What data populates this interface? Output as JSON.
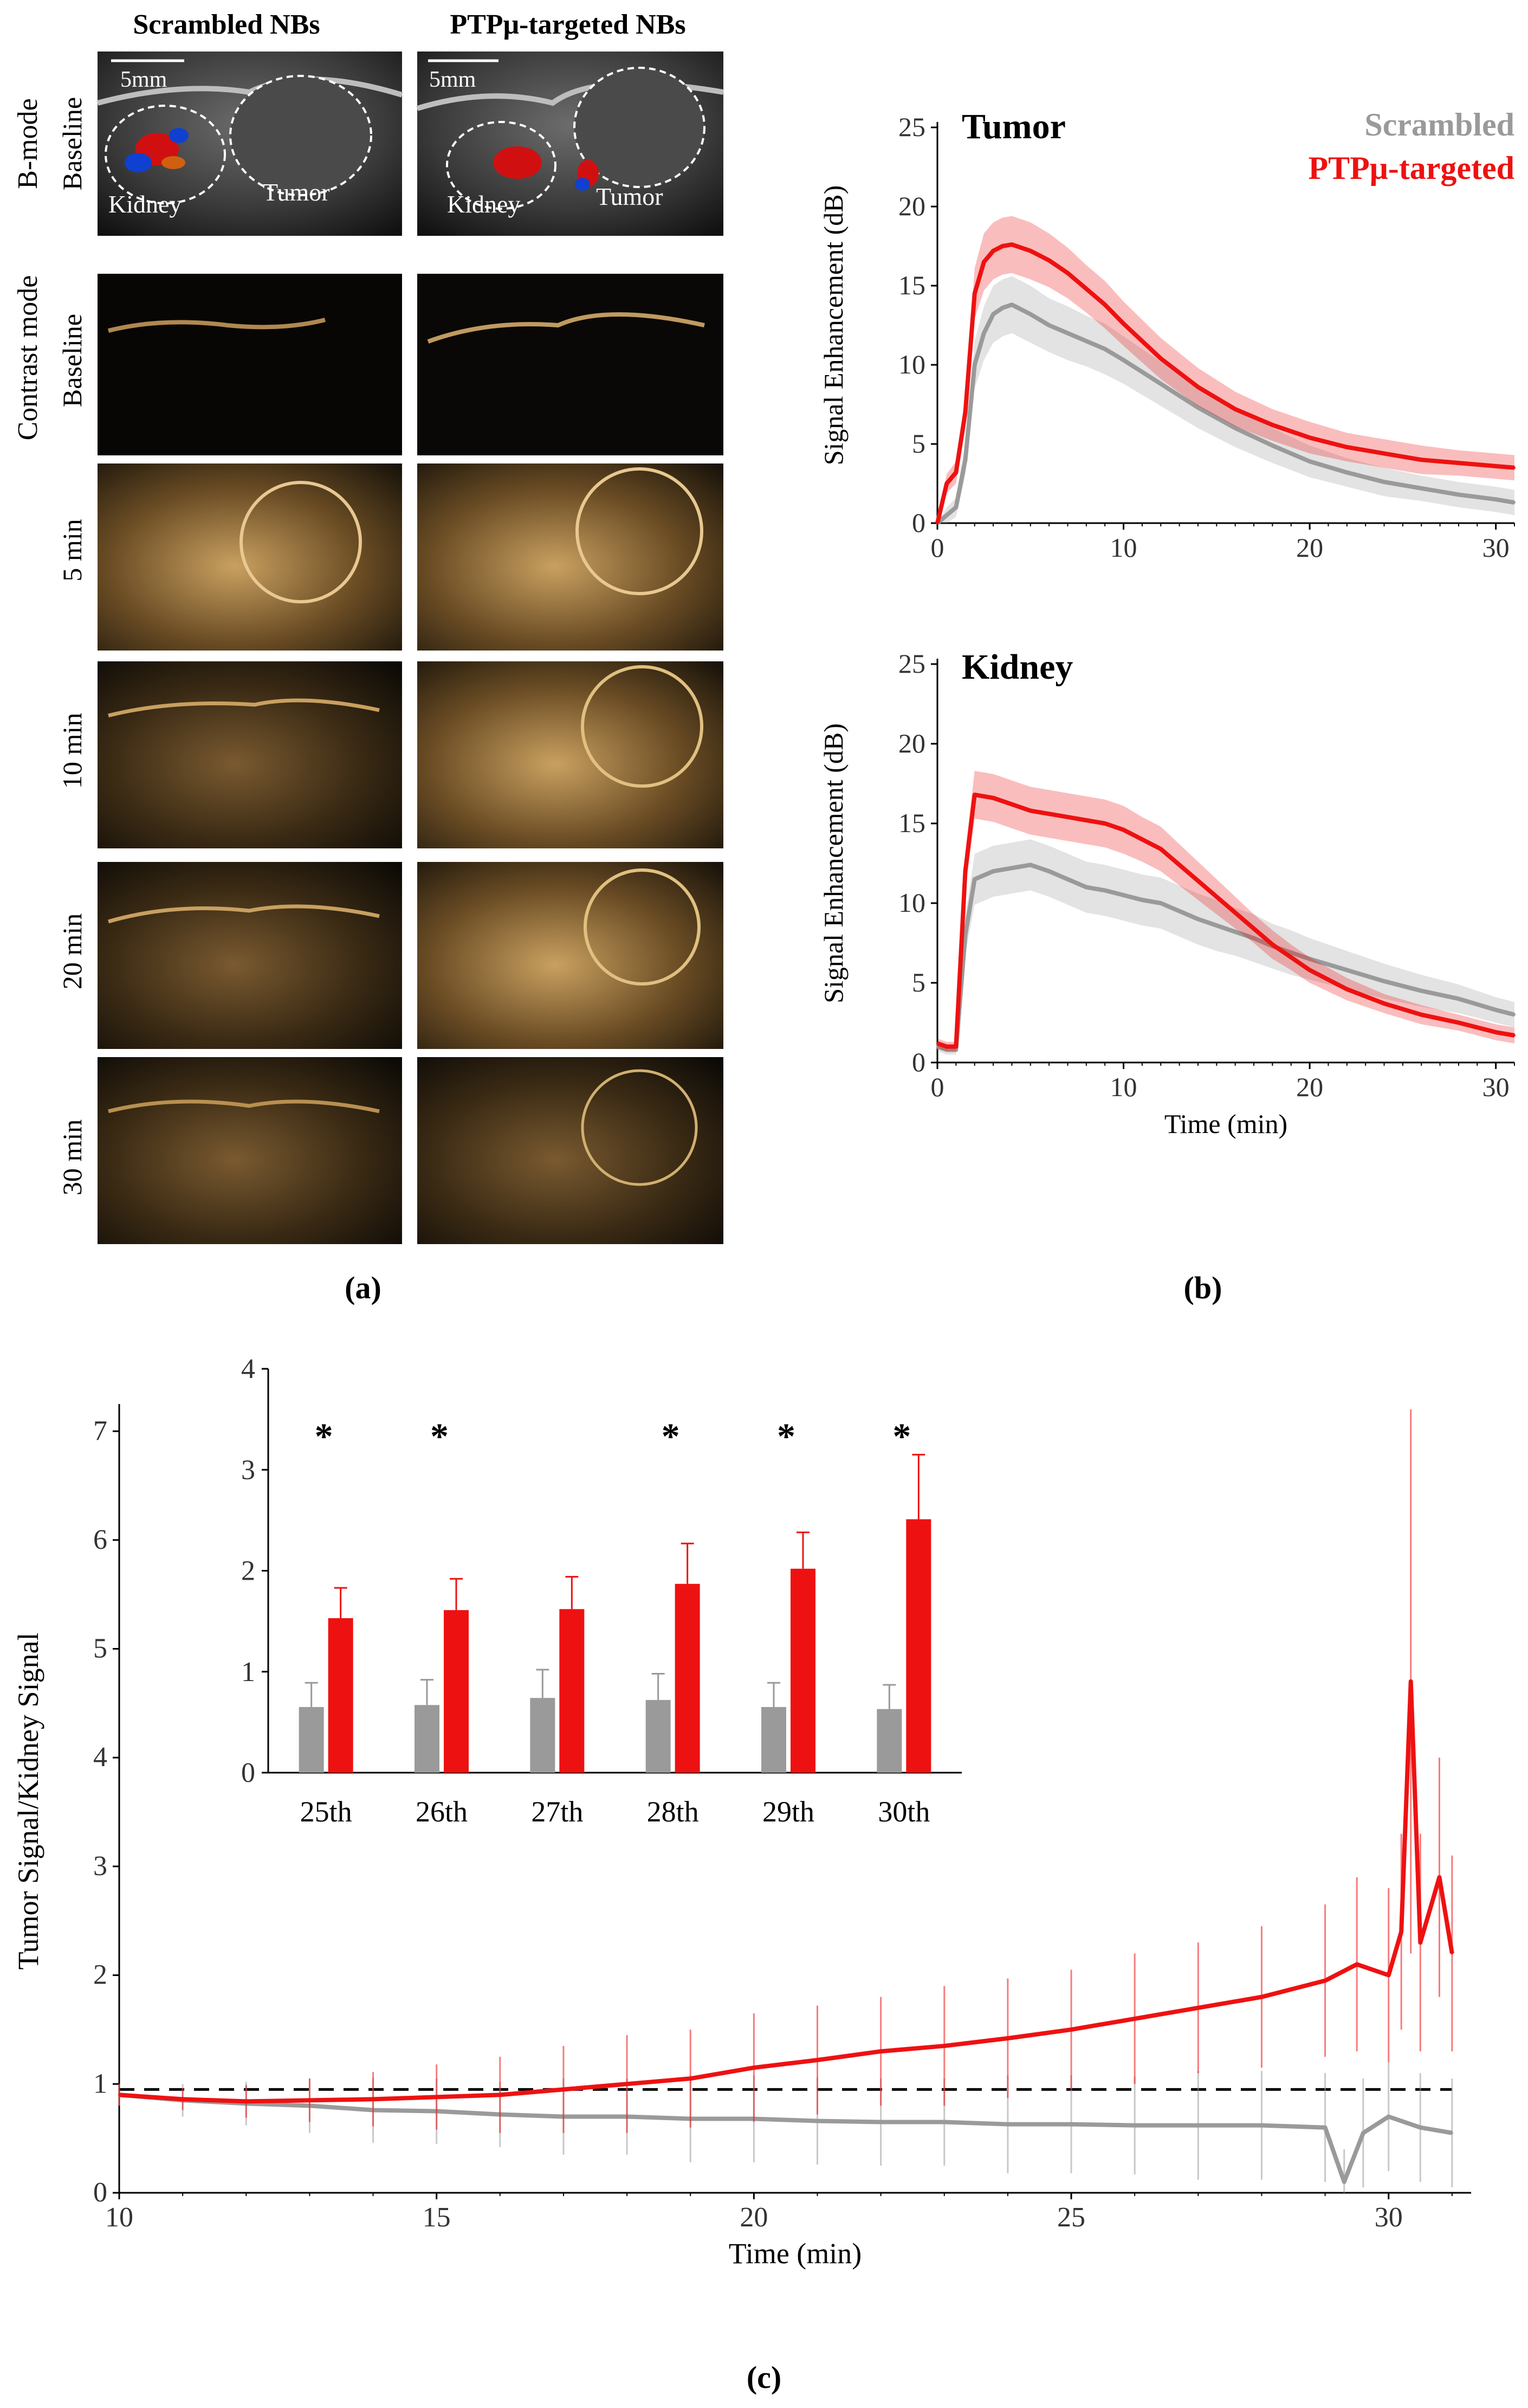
{
  "panel_a": {
    "column_headers": [
      "Scrambled NBs",
      "PTPμ-targeted NBs"
    ],
    "group_labels": [
      "B-mode",
      "Contrast mode"
    ],
    "row_labels": [
      "Baseline",
      "Baseline",
      "5 min",
      "10 min",
      "20 min",
      "30 min"
    ],
    "scale_bar": "5mm",
    "organ_labels": {
      "kidney": "Kidney",
      "tumor": "Tumor"
    },
    "caption": "(a)"
  },
  "panel_b": {
    "caption": "(b)"
  },
  "panel_c": {
    "caption": "(c)"
  },
  "colors": {
    "scrambled": "#9a9a9a",
    "targeted": "#ee1111",
    "ultrasound_tint": "#e0b878"
  },
  "chart_data": [
    {
      "id": "tumor",
      "type": "line",
      "title": "Tumor",
      "xlabel": "",
      "ylabel": "Signal Enhancement (dB)",
      "xlim": [
        0,
        31
      ],
      "ylim": [
        0,
        25
      ],
      "xticks": [
        0,
        10,
        20,
        30
      ],
      "yticks": [
        0,
        5,
        10,
        15,
        20,
        25
      ],
      "legend": {
        "placement": "top-right",
        "entries": [
          "Scrambled",
          "PTPμ-targeted"
        ]
      },
      "series": [
        {
          "name": "Scrambled",
          "color": "#9a9a9a",
          "x": [
            0,
            0.5,
            1,
            1.5,
            2,
            2.5,
            3,
            3.5,
            4,
            5,
            6,
            7,
            8,
            9,
            10,
            12,
            14,
            16,
            18,
            20,
            22,
            24,
            26,
            28,
            30,
            31
          ],
          "y": [
            0,
            0.5,
            1,
            4,
            10,
            12,
            13.2,
            13.6,
            13.8,
            13.2,
            12.5,
            12,
            11.5,
            11,
            10.3,
            8.8,
            7.3,
            6,
            4.9,
            3.9,
            3.2,
            2.6,
            2.2,
            1.8,
            1.5,
            1.3
          ],
          "err": [
            0,
            0.5,
            0.6,
            1,
            1.5,
            1.7,
            1.8,
            1.8,
            1.8,
            1.8,
            1.7,
            1.7,
            1.6,
            1.6,
            1.5,
            1.4,
            1.3,
            1.2,
            1.1,
            1,
            0.9,
            0.9,
            0.8,
            0.8,
            0.8,
            0.8
          ]
        },
        {
          "name": "PTPμ-targeted",
          "color": "#ee1111",
          "x": [
            0,
            0.5,
            1,
            1.5,
            2,
            2.5,
            3,
            3.5,
            4,
            5,
            6,
            7,
            8,
            9,
            10,
            12,
            14,
            16,
            18,
            20,
            22,
            24,
            26,
            28,
            30,
            31
          ],
          "y": [
            0,
            2.5,
            3.2,
            7,
            14.5,
            16.5,
            17.2,
            17.5,
            17.6,
            17.2,
            16.6,
            15.8,
            14.8,
            13.8,
            12.6,
            10.4,
            8.6,
            7.2,
            6.2,
            5.4,
            4.8,
            4.4,
            4,
            3.8,
            3.6,
            3.5
          ],
          "err": [
            0,
            0.6,
            0.7,
            1,
            1.6,
            1.8,
            1.8,
            1.8,
            1.8,
            1.8,
            1.7,
            1.6,
            1.5,
            1.5,
            1.4,
            1.3,
            1.2,
            1.1,
            1,
            1,
            0.9,
            0.9,
            0.9,
            0.8,
            0.8,
            0.8
          ]
        }
      ]
    },
    {
      "id": "kidney",
      "type": "line",
      "title": "Kidney",
      "xlabel": "Time (min)",
      "ylabel": "Signal Enhancement (dB)",
      "xlim": [
        0,
        31
      ],
      "ylim": [
        0,
        25
      ],
      "xticks": [
        0,
        10,
        20,
        30
      ],
      "yticks": [
        0,
        5,
        10,
        15,
        20,
        25
      ],
      "series": [
        {
          "name": "Scrambled",
          "color": "#9a9a9a",
          "x": [
            0,
            0.5,
            1,
            1.5,
            2,
            3,
            4,
            5,
            6,
            7,
            8,
            9,
            10,
            11,
            12,
            13,
            14,
            15,
            16,
            17,
            18,
            19,
            20,
            22,
            24,
            26,
            28,
            30,
            31
          ],
          "y": [
            1,
            0.8,
            0.8,
            8,
            11.5,
            12,
            12.2,
            12.4,
            12,
            11.5,
            11,
            10.8,
            10.5,
            10.2,
            10,
            9.5,
            9,
            8.6,
            8.2,
            7.8,
            7.3,
            6.9,
            6.5,
            5.8,
            5.1,
            4.5,
            4,
            3.3,
            3
          ],
          "err": [
            0.3,
            0.3,
            0.3,
            1.2,
            1.6,
            1.6,
            1.6,
            1.6,
            1.6,
            1.6,
            1.6,
            1.6,
            1.6,
            1.6,
            1.6,
            1.6,
            1.6,
            1.6,
            1.5,
            1.5,
            1.4,
            1.4,
            1.3,
            1.2,
            1.1,
            1,
            0.9,
            0.8,
            0.8
          ]
        },
        {
          "name": "PTPμ-targeted",
          "color": "#ee1111",
          "x": [
            0,
            0.5,
            1,
            1.5,
            2,
            3,
            4,
            5,
            6,
            7,
            8,
            9,
            10,
            11,
            12,
            13,
            14,
            15,
            16,
            17,
            18,
            19,
            20,
            22,
            24,
            26,
            28,
            30,
            31
          ],
          "y": [
            1.2,
            1,
            1,
            12,
            16.8,
            16.6,
            16.2,
            15.8,
            15.6,
            15.4,
            15.2,
            15,
            14.6,
            14,
            13.4,
            12.4,
            11.4,
            10.4,
            9.4,
            8.4,
            7.4,
            6.6,
            5.8,
            4.6,
            3.7,
            3,
            2.5,
            1.9,
            1.7
          ],
          "err": [
            0.3,
            0.3,
            0.3,
            1.2,
            1.5,
            1.5,
            1.5,
            1.5,
            1.5,
            1.5,
            1.5,
            1.5,
            1.5,
            1.4,
            1.4,
            1.3,
            1.2,
            1.1,
            1,
            0.9,
            0.9,
            0.8,
            0.8,
            0.7,
            0.6,
            0.6,
            0.5,
            0.5,
            0.5
          ]
        }
      ]
    },
    {
      "id": "ratio",
      "type": "line",
      "xlabel": "Time (min)",
      "ylabel": "Tumor Signal/Kidney Signal",
      "xlim": [
        10,
        31.3
      ],
      "ylim": [
        0,
        7.2
      ],
      "xticks": [
        10,
        15,
        20,
        25,
        30
      ],
      "yticks": [
        0,
        1,
        2,
        3,
        4,
        5,
        6,
        7
      ],
      "reference_line": {
        "y": 0.95,
        "style": "dashed"
      },
      "series": [
        {
          "name": "Scrambled",
          "color": "#9a9a9a",
          "x": [
            10,
            11,
            12,
            13,
            14,
            15,
            16,
            17,
            18,
            19,
            20,
            21,
            22,
            23,
            24,
            25,
            26,
            27,
            28,
            29,
            29.3,
            29.6,
            30,
            30.5,
            31
          ],
          "y": [
            0.9,
            0.85,
            0.82,
            0.8,
            0.76,
            0.75,
            0.72,
            0.7,
            0.7,
            0.68,
            0.68,
            0.66,
            0.65,
            0.65,
            0.63,
            0.63,
            0.62,
            0.62,
            0.62,
            0.6,
            0.1,
            0.55,
            0.7,
            0.6,
            0.55
          ],
          "err": [
            0.1,
            0.15,
            0.2,
            0.25,
            0.3,
            0.3,
            0.3,
            0.35,
            0.35,
            0.4,
            0.4,
            0.4,
            0.4,
            0.4,
            0.45,
            0.45,
            0.45,
            0.5,
            0.5,
            0.5,
            0.3,
            0.5,
            0.5,
            0.5,
            0.5
          ]
        },
        {
          "name": "PTPμ-targeted",
          "color": "#ee1111",
          "x": [
            10,
            11,
            12,
            13,
            14,
            15,
            16,
            17,
            18,
            19,
            20,
            21,
            22,
            23,
            24,
            25,
            26,
            27,
            28,
            29,
            29.5,
            30,
            30.2,
            30.35,
            30.5,
            30.8,
            31
          ],
          "y": [
            0.9,
            0.86,
            0.84,
            0.85,
            0.86,
            0.88,
            0.9,
            0.95,
            1,
            1.05,
            1.15,
            1.22,
            1.3,
            1.35,
            1.42,
            1.5,
            1.6,
            1.7,
            1.8,
            1.95,
            2.1,
            2,
            2.4,
            4.7,
            2.3,
            2.9,
            2.2
          ],
          "err": [
            0.1,
            0.1,
            0.15,
            0.2,
            0.25,
            0.3,
            0.35,
            0.4,
            0.45,
            0.45,
            0.5,
            0.5,
            0.5,
            0.55,
            0.55,
            0.55,
            0.6,
            0.6,
            0.65,
            0.7,
            0.8,
            0.8,
            0.9,
            2.5,
            1,
            1.1,
            0.9
          ]
        }
      ]
    },
    {
      "id": "ratio-inset",
      "type": "bar",
      "categories": [
        "25th",
        "26th",
        "27th",
        "28th",
        "29th",
        "30th"
      ],
      "ylim": [
        0,
        4
      ],
      "yticks": [
        0,
        1,
        2,
        3,
        4
      ],
      "significance": [
        "*",
        "*",
        "",
        "*",
        "*",
        "*"
      ],
      "series": [
        {
          "name": "Scrambled",
          "color": "#9a9a9a",
          "values": [
            0.65,
            0.67,
            0.74,
            0.72,
            0.65,
            0.63
          ],
          "err": [
            0.24,
            0.25,
            0.28,
            0.26,
            0.24,
            0.24
          ]
        },
        {
          "name": "PTPμ-targeted",
          "color": "#ee1111",
          "values": [
            1.53,
            1.61,
            1.62,
            1.87,
            2.02,
            2.51
          ],
          "err": [
            0.3,
            0.31,
            0.32,
            0.4,
            0.36,
            0.64
          ]
        }
      ]
    }
  ]
}
